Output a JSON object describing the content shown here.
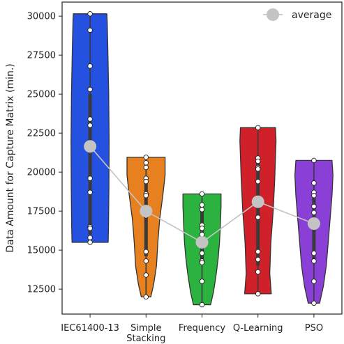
{
  "chart_data": {
    "type": "violin",
    "title": "",
    "xlabel": "",
    "ylabel": "Data Amount for Capture Matrix (min.)",
    "ylim": [
      10900,
      30900
    ],
    "yticks": [
      12500,
      15000,
      17500,
      20000,
      22500,
      25000,
      27500,
      30000
    ],
    "ytick_labels": [
      "12500",
      "15000",
      "17500",
      "20000",
      "22500",
      "25000",
      "27500",
      "30000"
    ],
    "grid": false,
    "legend": {
      "position": "top-right",
      "entries": [
        "average"
      ]
    },
    "categories": [
      {
        "lines": [
          "IEC61400-13"
        ],
        "color": "#2451e0",
        "range": [
          15500,
          30150
        ],
        "q1": 16000,
        "q3": 25000,
        "mean": 21650,
        "points": [
          30150,
          29100,
          26800,
          25300,
          23400,
          23000,
          21500,
          19600,
          18700,
          16500,
          16400,
          15800,
          15500
        ],
        "shape": [
          [
            15500,
            0.95
          ],
          [
            16500,
            0.97
          ],
          [
            19000,
            0.99
          ],
          [
            22000,
            1.0
          ],
          [
            25000,
            0.98
          ],
          [
            28000,
            0.93
          ],
          [
            29700,
            0.9
          ],
          [
            30150,
            0.88
          ]
        ]
      },
      {
        "lines": [
          "Simple",
          "Stacking"
        ],
        "color": "#e7801f",
        "range": [
          12000,
          20950
        ],
        "q1": 14600,
        "q3": 19500,
        "mean": 17500,
        "points": [
          20950,
          20600,
          20300,
          19600,
          19400,
          18600,
          18500,
          17200,
          14900,
          14300,
          13400,
          12000
        ],
        "shape": [
          [
            12000,
            0.25
          ],
          [
            12800,
            0.4
          ],
          [
            14000,
            0.55
          ],
          [
            15500,
            0.62
          ],
          [
            17000,
            0.72
          ],
          [
            18500,
            0.88
          ],
          [
            19800,
            1.0
          ],
          [
            20950,
            1.0
          ]
        ]
      },
      {
        "lines": [
          "Frequency"
        ],
        "color": "#2bb23f",
        "range": [
          11500,
          18600
        ],
        "q1": 14200,
        "q3": 17600,
        "mean": 15500,
        "points": [
          18600,
          17900,
          17600,
          16600,
          16400,
          16000,
          15500,
          14800,
          14300,
          14200,
          13000,
          11500
        ],
        "shape": [
          [
            11500,
            0.45
          ],
          [
            12300,
            0.6
          ],
          [
            13500,
            0.75
          ],
          [
            14500,
            0.85
          ],
          [
            15500,
            0.92
          ],
          [
            16500,
            0.96
          ],
          [
            17800,
            1.0
          ],
          [
            18600,
            1.0
          ]
        ]
      },
      {
        "lines": [
          "Q-Learning"
        ],
        "color": "#d0202a",
        "range": [
          12200,
          22850
        ],
        "q1": 14000,
        "q3": 20700,
        "mean": 18100,
        "points": [
          22850,
          20900,
          20700,
          20300,
          20200,
          19400,
          18300,
          17100,
          14900,
          14400,
          13600,
          12200
        ],
        "shape": [
          [
            12200,
            0.7
          ],
          [
            13500,
            0.62
          ],
          [
            15500,
            0.68
          ],
          [
            17500,
            0.8
          ],
          [
            19500,
            0.88
          ],
          [
            21000,
            0.92
          ],
          [
            22000,
            0.95
          ],
          [
            22850,
            0.92
          ]
        ]
      },
      {
        "lines": [
          "PSO"
        ],
        "color": "#8a3fd6",
        "range": [
          11600,
          20750
        ],
        "q1": 14300,
        "q3": 18800,
        "mean": 16700,
        "points": [
          20750,
          19300,
          18700,
          18500,
          17800,
          17400,
          16700,
          14800,
          14300,
          13000,
          11600
        ],
        "shape": [
          [
            11600,
            0.3
          ],
          [
            12700,
            0.5
          ],
          [
            14000,
            0.65
          ],
          [
            15500,
            0.75
          ],
          [
            17000,
            0.85
          ],
          [
            18500,
            0.95
          ],
          [
            19800,
            1.0
          ],
          [
            20750,
            0.95
          ]
        ]
      }
    ],
    "average_series": {
      "name": "average",
      "values": [
        21650,
        17500,
        15500,
        18100,
        16700
      ]
    }
  }
}
